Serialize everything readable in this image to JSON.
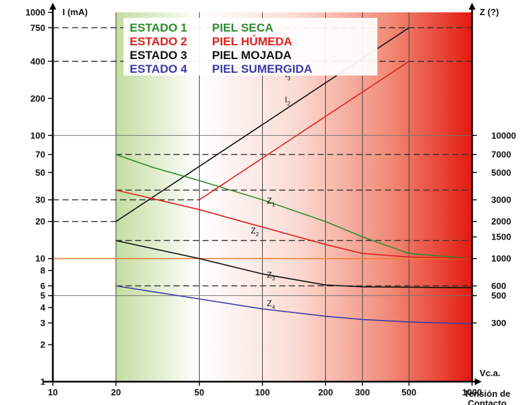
{
  "chart_data": {
    "type": "line",
    "log_scale": {
      "x": true,
      "y_left": true,
      "y_right": true
    },
    "grid": true,
    "background": "gradient: white to red from 500 V to 1000 V (left portion to the right); green shaded band between 20 V and 50 V",
    "left_axis": {
      "label": "I (mA)",
      "range": [
        1,
        1000
      ],
      "ticks": [
        "1",
        "2",
        "3",
        "4",
        "5",
        "6",
        "8",
        "10",
        "20",
        "30",
        "50",
        "70",
        "100",
        "200",
        "400",
        "750",
        "1000"
      ]
    },
    "right_axis": {
      "label": "Z (?)",
      "ticks": [
        "300",
        "500",
        "600",
        "1000",
        "1500",
        "2000",
        "3000",
        "5000",
        "7000",
        "10000"
      ]
    },
    "x_axis": {
      "label": "Tensión de Contacto",
      "unit_label": "Vc.a.",
      "range": [
        10,
        1000
      ],
      "ticks": [
        "10",
        "20",
        "50",
        "100",
        "200",
        "300",
        "500",
        "1000"
      ]
    },
    "legend": [
      {
        "state": "ESTADO 1",
        "desc": "PIEL SECA",
        "color": "#2e8b2e"
      },
      {
        "state": "ESTADO 2",
        "desc": "PIEL HÚMEDA",
        "color": "#e02020"
      },
      {
        "state": "ESTADO 3",
        "desc": "PIEL MOJADA",
        "color": "#111111"
      },
      {
        "state": "ESTADO 4",
        "desc": "PIEL SUMERGIDA",
        "color": "#3a3aa8"
      }
    ],
    "series": [
      {
        "name": "I3",
        "label": "I",
        "sub": "3",
        "color": "#111111",
        "axis": "left",
        "x": [
          20,
          500
        ],
        "y": [
          20,
          750
        ],
        "label_at": [
          128,
          295
        ]
      },
      {
        "name": "I2",
        "label": "I",
        "sub": "2",
        "color": "#e02020",
        "axis": "left",
        "x": [
          50,
          500
        ],
        "y": [
          30,
          400
        ],
        "label_at": [
          128,
          185
        ]
      },
      {
        "name": "Z1",
        "label": "Z",
        "sub": "1",
        "color": "#2e8b2e",
        "axis": "left",
        "x": [
          20,
          30,
          50,
          100,
          200,
          300,
          500,
          1000
        ],
        "y": [
          70,
          55,
          43,
          30,
          20,
          15,
          11,
          10
        ],
        "label_at": [
          105,
          28
        ]
      },
      {
        "name": "Z2",
        "label": "Z",
        "sub": "2",
        "color": "#e02020",
        "axis": "left",
        "x": [
          20,
          50,
          100,
          200,
          300,
          500,
          1000
        ],
        "y": [
          36,
          25,
          18,
          13,
          11,
          10.3,
          10
        ],
        "label_at": [
          88,
          16
        ]
      },
      {
        "name": "Z3",
        "label": "Z",
        "sub": "3",
        "color": "#111111",
        "axis": "left",
        "x": [
          20,
          50,
          100,
          200,
          300,
          500,
          1000
        ],
        "y": [
          14,
          10,
          7.5,
          6.1,
          5.9,
          5.85,
          5.8
        ],
        "label_at": [
          105,
          7
        ]
      },
      {
        "name": "Z4",
        "label": "Z",
        "sub": "4",
        "color": "#3a3aa8",
        "axis": "left",
        "x": [
          20,
          50,
          100,
          200,
          300,
          500,
          1000
        ],
        "y": [
          6,
          4.7,
          3.9,
          3.4,
          3.2,
          3.05,
          2.95
        ],
        "label_at": [
          105,
          4.1
        ]
      }
    ],
    "reference_lines": {
      "dashed_h": [
        {
          "y": 750,
          "x_from": 10,
          "x_to": 1000
        },
        {
          "y": 400,
          "x_from": 10,
          "x_to": 1000
        },
        {
          "y": 70,
          "x_from": 20,
          "x_to": 1000
        },
        {
          "y": 36,
          "x_from": 20,
          "x_to": 1000
        },
        {
          "y": 30,
          "x_from": 10,
          "x_to": 50
        },
        {
          "y": 20,
          "x_from": 10,
          "x_to": 20
        },
        {
          "y": 14,
          "x_from": 20,
          "x_to": 1000
        },
        {
          "y": 6,
          "x_from": 20,
          "x_to": 1000
        }
      ],
      "solid_h": [
        {
          "y": 100,
          "color": "#777777"
        },
        {
          "y": 10,
          "color": "#f08030"
        },
        {
          "y": 5,
          "color": "#777777"
        }
      ]
    }
  }
}
